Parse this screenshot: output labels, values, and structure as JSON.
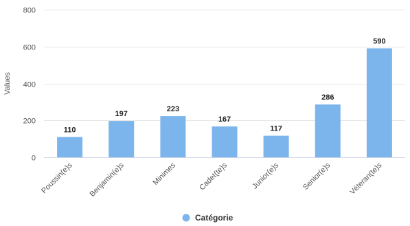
{
  "chart_data": {
    "type": "bar",
    "ylabel": "Values",
    "xlabel": "",
    "ylim": [
      0,
      800
    ],
    "yticks": [
      0,
      200,
      400,
      600,
      800
    ],
    "categories": [
      "Poussin(e)s",
      "Benjamin(e)s",
      "Minimes",
      "Cadet(te)s",
      "Junior(e)s",
      "Senior(e)s",
      "Véteran(te)s"
    ],
    "series": [
      {
        "name": "Catégorie",
        "values": [
          110,
          197,
          223,
          167,
          117,
          286,
          590
        ],
        "color": "#7cb5ec"
      }
    ],
    "data_labels": true,
    "grid": true,
    "legend": "bottom-center"
  }
}
